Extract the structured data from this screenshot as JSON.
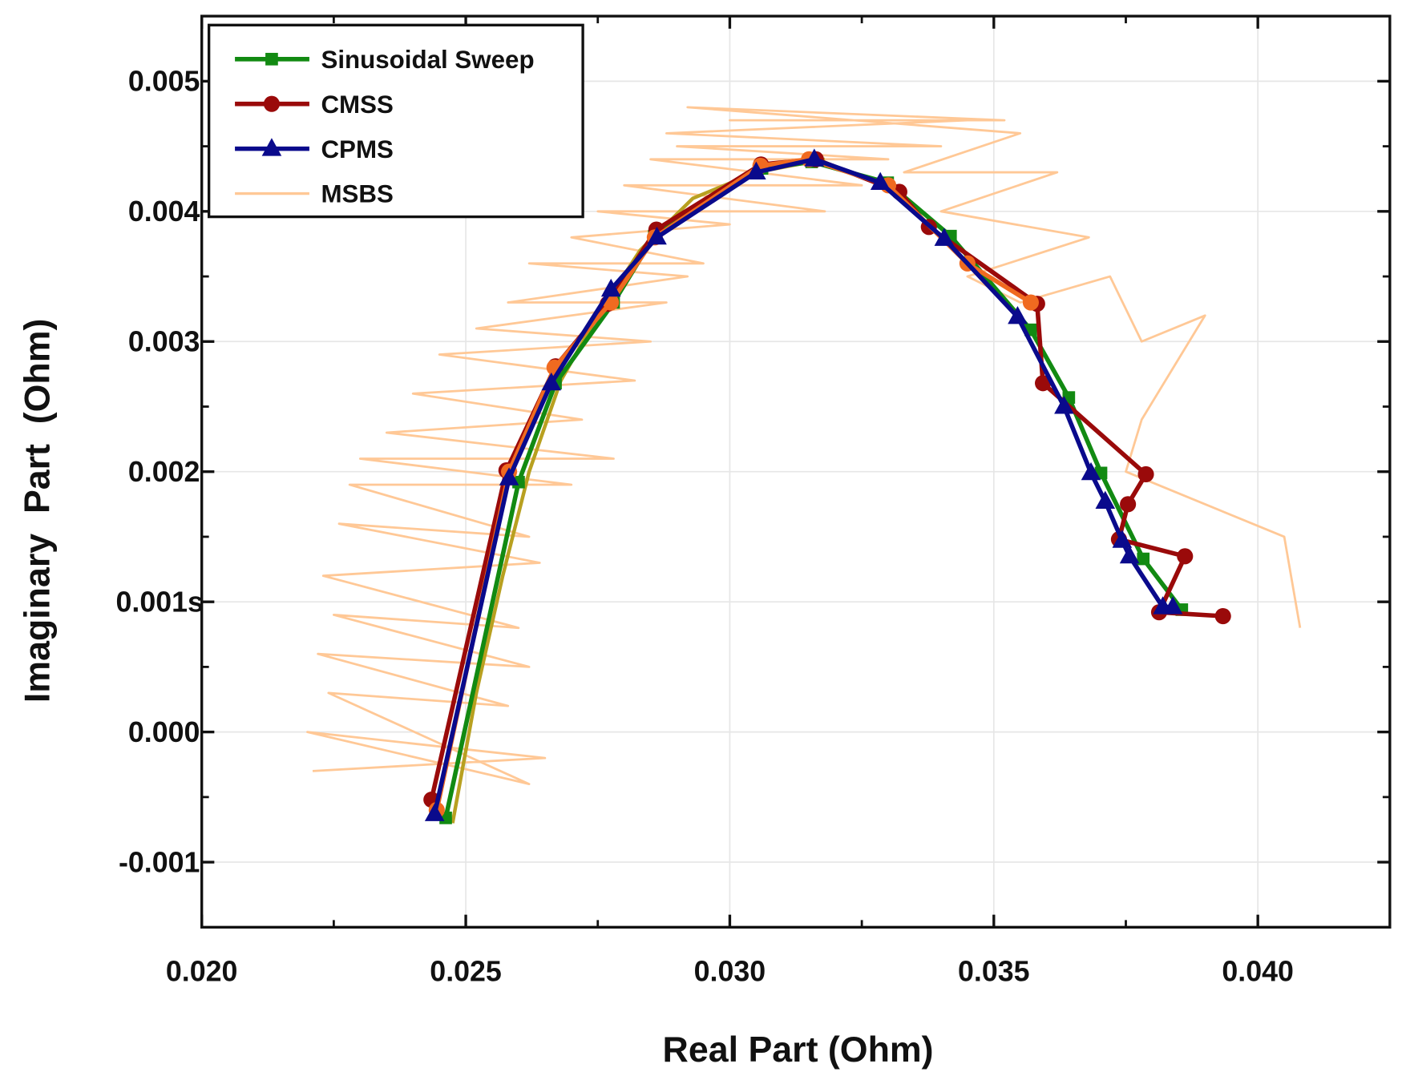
{
  "chart_data": {
    "type": "line",
    "title": "",
    "xlabel": "Real Part (Ohm)",
    "ylabel": "Imaginary  Part  (Ohm)",
    "xlim": [
      0.02,
      0.0425
    ],
    "ylim": [
      -0.0015,
      0.0055
    ],
    "grid": true,
    "legend": "top-left",
    "x_ticks": [
      0.02,
      0.025,
      0.03,
      0.035,
      0.04
    ],
    "x_tick_labels": [
      "0.020",
      "0.025",
      "0.030",
      "0.035",
      "0.040"
    ],
    "y_ticks": [
      -0.001,
      0.0,
      0.001,
      0.002,
      0.003,
      0.004,
      0.005
    ],
    "y_tick_labels": [
      "-0.001",
      "0.000",
      "0.001s",
      "0.002",
      "0.003",
      "0.004",
      "0.005"
    ],
    "series": [
      {
        "name": "MSBS",
        "color": "#ffc896",
        "marker": "none",
        "x": [
          0.0221,
          0.0265,
          0.022,
          0.0262,
          0.0224,
          0.0258,
          0.0222,
          0.0262,
          0.0225,
          0.026,
          0.0223,
          0.0264,
          0.0226,
          0.0262,
          0.0228,
          0.027,
          0.023,
          0.0278,
          0.0235,
          0.0272,
          0.024,
          0.0282,
          0.0245,
          0.0285,
          0.0252,
          0.0288,
          0.0258,
          0.0292,
          0.0262,
          0.0295,
          0.027,
          0.03,
          0.0275,
          0.0318,
          0.028,
          0.0325,
          0.0285,
          0.033,
          0.029,
          0.034,
          0.0288,
          0.0345,
          0.03,
          0.0352,
          0.0292,
          0.0355,
          0.0333,
          0.0362,
          0.034,
          0.0368,
          0.0345,
          0.0355,
          0.0372,
          0.0378,
          0.039,
          0.0378,
          0.0375,
          0.0405,
          0.0408
        ],
        "y": [
          -0.0003,
          -0.0002,
          0.0,
          -0.0004,
          0.0003,
          0.0002,
          0.0006,
          0.0005,
          0.0009,
          0.0008,
          0.0012,
          0.0013,
          0.0016,
          0.0015,
          0.0019,
          0.0019,
          0.0021,
          0.0021,
          0.0023,
          0.0024,
          0.0026,
          0.0027,
          0.0029,
          0.003,
          0.0031,
          0.0033,
          0.0033,
          0.0035,
          0.0036,
          0.0036,
          0.0038,
          0.0039,
          0.004,
          0.004,
          0.0042,
          0.0042,
          0.0044,
          0.0044,
          0.0045,
          0.0045,
          0.0046,
          0.0047,
          0.0047,
          0.0047,
          0.0048,
          0.0046,
          0.0043,
          0.0043,
          0.004,
          0.0038,
          0.0035,
          0.0033,
          0.0035,
          0.003,
          0.0032,
          0.0024,
          0.002,
          0.0015,
          0.0008
        ]
      },
      {
        "name": "",
        "color": "#b8a020",
        "marker": "none",
        "x": [
          0.02475,
          0.0252,
          0.0257,
          0.0262,
          0.0268,
          0.0275,
          0.0283,
          0.0293,
          0.0305,
          0.0318
        ],
        "y": [
          -0.0007,
          0.0003,
          0.0012,
          0.002,
          0.0027,
          0.0032,
          0.0037,
          0.0041,
          0.0043,
          0.0044
        ]
      },
      {
        "name": "Sinusoidal Sweep",
        "color": "#128a12",
        "marker": "square",
        "x": [
          0.02462,
          0.026,
          0.0267,
          0.0278,
          0.02857,
          0.03061,
          0.03155,
          0.03299,
          0.03418,
          0.0357,
          0.03642,
          0.03703,
          0.03783,
          0.03856
        ],
        "y": [
          -0.00066,
          0.00192,
          0.00268,
          0.0033,
          0.00381,
          0.00433,
          0.00438,
          0.00422,
          0.00381,
          0.00309,
          0.00257,
          0.00199,
          0.00133,
          0.00094
        ]
      },
      {
        "name": "CMSS",
        "color": "#9a0a0a",
        "marker": "circle",
        "x": [
          0.02435,
          0.02577,
          0.0267,
          0.02769,
          0.02861,
          0.03059,
          0.03163,
          0.03321,
          0.03377,
          0.03582,
          0.03593,
          0.03788,
          0.03754,
          0.03737,
          0.03862,
          0.03813,
          0.03934
        ],
        "y": [
          -0.00052,
          0.00201,
          0.00281,
          0.00329,
          0.00386,
          0.00436,
          0.0044,
          0.00415,
          0.00388,
          0.00329,
          0.00268,
          0.00198,
          0.00175,
          0.00148,
          0.00135,
          0.00092,
          0.00089
        ]
      },
      {
        "name": "",
        "color": "#f06a20",
        "marker": "circle",
        "x": [
          0.02445,
          0.02582,
          0.02668,
          0.02775,
          0.02858,
          0.03058,
          0.0315,
          0.033,
          0.0345,
          0.0357
        ],
        "y": [
          -0.0006,
          0.002,
          0.0028,
          0.0033,
          0.0038,
          0.00435,
          0.0044,
          0.0042,
          0.0036,
          0.0033
        ]
      },
      {
        "name": "CPMS",
        "color": "#0a0a8c",
        "marker": "triangle",
        "x": [
          0.02441,
          0.02582,
          0.02662,
          0.02775,
          0.02862,
          0.0305,
          0.0316,
          0.03285,
          0.03406,
          0.03545,
          0.03633,
          0.03684,
          0.03711,
          0.03743,
          0.03757,
          0.0382,
          0.03839
        ],
        "y": [
          -0.00063,
          0.00195,
          0.00268,
          0.0034,
          0.0038,
          0.0043,
          0.0044,
          0.00422,
          0.00379,
          0.00319,
          0.0025,
          0.00199,
          0.00177,
          0.00147,
          0.00135,
          0.00096,
          0.00096
        ]
      }
    ],
    "legend_entries": [
      "Sinusoidal Sweep",
      "CMSS",
      "CPMS",
      "MSBS"
    ]
  }
}
